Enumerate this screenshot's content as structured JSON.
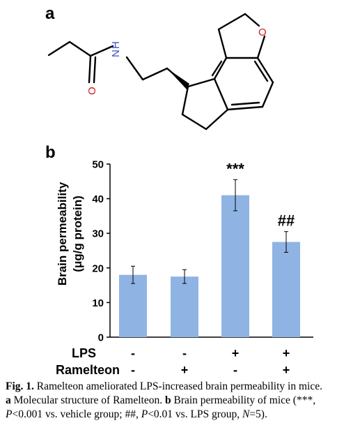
{
  "panels": {
    "a_label": "a",
    "b_label": "b"
  },
  "molecule": {
    "atom_labels": {
      "nitrogen": "N",
      "hydrogen": "H",
      "oxygen_carbonyl": "O",
      "oxygen_ring": "O"
    },
    "colors": {
      "nitrogen": "#3b4fc4",
      "oxygen": "#d01c1c",
      "bond": "#000000"
    }
  },
  "chart_data": {
    "type": "bar",
    "ylabel_line1": "Brain permeability",
    "ylabel_line2": "(μg/g protein)",
    "ylim": [
      0,
      50
    ],
    "yticks": [
      "0",
      "10",
      "20",
      "30",
      "40",
      "50"
    ],
    "values": [
      18,
      17.5,
      41,
      27.5
    ],
    "errors": [
      2.5,
      2,
      4.5,
      3
    ],
    "significance": [
      "",
      "",
      "***",
      "##"
    ],
    "bar_color": "#8fb4e3",
    "row_labels": [
      "LPS",
      "Ramelteon"
    ],
    "rows": [
      [
        "-",
        "-",
        "+",
        "+"
      ],
      [
        "-",
        "+",
        "-",
        "+"
      ]
    ]
  },
  "caption": {
    "fig_label": "Fig. 1.",
    "title": "Ramelteon ameliorated LPS-increased brain permeability in mice.",
    "a_label": "a",
    "a_text": "Molecular structure of Ramelteon.",
    "b_label": "b",
    "b_text": "Brain permeability of mice (***,",
    "p1": "P",
    "p1_text": "<0.001 vs. vehicle group; ##,",
    "p2": "P",
    "p2_text": "<0.01 vs. LPS group,",
    "n": "N",
    "n_text": "=5)."
  }
}
